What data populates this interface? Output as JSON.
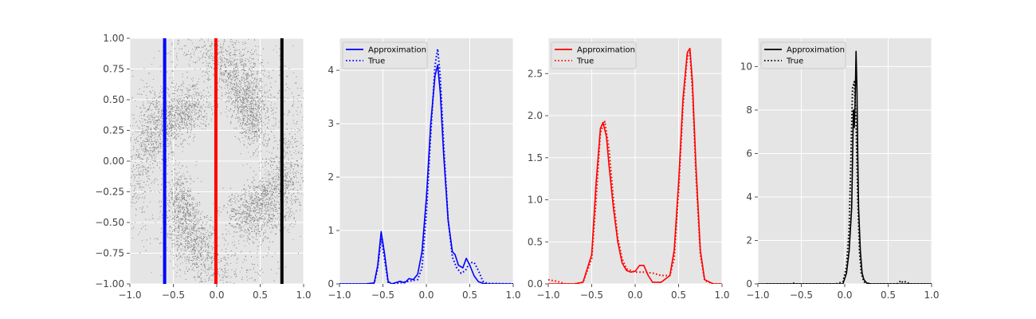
{
  "chart_data": [
    {
      "type": "scatter",
      "title": "",
      "xlabel": "",
      "ylabel": "",
      "xlim": [
        -1.0,
        1.0
      ],
      "ylim": [
        -1.0,
        1.0
      ],
      "grid": true,
      "xticks": [
        "−1.0",
        "−0.5",
        "0.0",
        "0.5",
        "1.0"
      ],
      "yticks": [
        "−1.00",
        "−0.75",
        "−0.50",
        "−0.25",
        "0.00",
        "0.25",
        "0.50",
        "0.75",
        "1.00"
      ],
      "xtick_values": [
        -1.0,
        -0.5,
        0.0,
        0.5,
        1.0
      ],
      "ytick_values": [
        -1.0,
        -0.75,
        -0.5,
        -0.25,
        0.0,
        0.25,
        0.5,
        0.75,
        1.0
      ],
      "point_color": "#808080",
      "spiral_arms": 4,
      "vertical_lines": [
        {
          "x": -0.6,
          "color": "#0000ff"
        },
        {
          "x": -0.01,
          "color": "#ff0000"
        },
        {
          "x": 0.75,
          "color": "#000000"
        }
      ]
    },
    {
      "type": "line",
      "title": "",
      "xlabel": "",
      "ylabel": "",
      "xlim": [
        -1.0,
        1.0
      ],
      "ylim": [
        0,
        4.6
      ],
      "grid": true,
      "legend": "top-left",
      "xticks": [
        "−1.0",
        "−0.5",
        "0.0",
        "0.5",
        "1.0"
      ],
      "yticks": [
        "0",
        "1",
        "2",
        "3",
        "4"
      ],
      "xtick_values": [
        -1.0,
        -0.5,
        0.0,
        0.5,
        1.0
      ],
      "ytick_values": [
        0,
        1,
        2,
        3,
        4
      ],
      "color": "#0000ff",
      "series": [
        {
          "name": "Approximation",
          "style": "solid",
          "x": [
            -1.0,
            -0.7,
            -0.6,
            -0.56,
            -0.52,
            -0.48,
            -0.44,
            -0.4,
            -0.3,
            -0.25,
            -0.2,
            -0.15,
            -0.1,
            -0.05,
            0.0,
            0.05,
            0.1,
            0.13,
            0.16,
            0.2,
            0.25,
            0.3,
            0.33,
            0.37,
            0.42,
            0.46,
            0.5,
            0.55,
            0.6,
            0.65,
            0.7,
            1.0
          ],
          "y": [
            0.0,
            0.0,
            0.02,
            0.35,
            0.98,
            0.55,
            0.05,
            0.0,
            0.05,
            0.02,
            0.1,
            0.08,
            0.18,
            0.6,
            1.6,
            3.0,
            3.9,
            4.1,
            3.6,
            2.4,
            1.2,
            0.6,
            0.55,
            0.35,
            0.3,
            0.48,
            0.35,
            0.15,
            0.04,
            0.01,
            0.0,
            0.0
          ]
        },
        {
          "name": "True",
          "style": "dotted",
          "x": [
            -1.0,
            -0.7,
            -0.6,
            -0.56,
            -0.52,
            -0.48,
            -0.44,
            -0.4,
            -0.3,
            -0.2,
            -0.1,
            -0.05,
            0.0,
            0.05,
            0.1,
            0.13,
            0.16,
            0.2,
            0.25,
            0.3,
            0.35,
            0.4,
            0.45,
            0.5,
            0.55,
            0.6,
            0.65,
            0.7,
            1.0
          ],
          "y": [
            0.0,
            0.0,
            0.01,
            0.3,
            0.85,
            0.45,
            0.03,
            0.0,
            0.02,
            0.05,
            0.08,
            0.3,
            1.3,
            2.8,
            4.1,
            4.4,
            3.9,
            2.6,
            1.2,
            0.5,
            0.3,
            0.2,
            0.25,
            0.4,
            0.4,
            0.25,
            0.05,
            0.01,
            0.0
          ]
        }
      ]
    },
    {
      "type": "line",
      "title": "",
      "xlabel": "",
      "ylabel": "",
      "xlim": [
        -1.0,
        1.0
      ],
      "ylim": [
        0,
        2.92
      ],
      "grid": true,
      "legend": "top-left",
      "xticks": [
        "−1.0",
        "−0.5",
        "0.0",
        "0.5",
        "1.0"
      ],
      "yticks": [
        "0.0",
        "0.5",
        "1.0",
        "1.5",
        "2.0",
        "2.5"
      ],
      "xtick_values": [
        -1.0,
        -0.5,
        0.0,
        0.5,
        1.0
      ],
      "ytick_values": [
        0.0,
        0.5,
        1.0,
        1.5,
        2.0,
        2.5
      ],
      "color": "#ff0000",
      "series": [
        {
          "name": "Approximation",
          "style": "solid",
          "x": [
            -1.0,
            -0.7,
            -0.6,
            -0.5,
            -0.45,
            -0.4,
            -0.37,
            -0.33,
            -0.3,
            -0.25,
            -0.2,
            -0.15,
            -0.1,
            -0.05,
            0.0,
            0.05,
            0.1,
            0.15,
            0.2,
            0.3,
            0.4,
            0.45,
            0.5,
            0.55,
            0.6,
            0.63,
            0.66,
            0.7,
            0.75,
            0.8,
            0.9,
            1.0
          ],
          "y": [
            0.0,
            0.0,
            0.02,
            0.35,
            1.2,
            1.85,
            1.92,
            1.75,
            1.4,
            0.9,
            0.5,
            0.25,
            0.16,
            0.14,
            0.15,
            0.22,
            0.22,
            0.1,
            0.02,
            0.02,
            0.1,
            0.4,
            1.2,
            2.2,
            2.75,
            2.8,
            2.4,
            1.4,
            0.4,
            0.05,
            0.0,
            0.0
          ]
        },
        {
          "name": "True",
          "style": "dotted",
          "x": [
            -1.0,
            -0.9,
            -0.8,
            -0.7,
            -0.6,
            -0.5,
            -0.45,
            -0.4,
            -0.35,
            -0.3,
            -0.25,
            -0.2,
            -0.15,
            -0.1,
            0.0,
            0.1,
            0.2,
            0.3,
            0.4,
            0.45,
            0.5,
            0.55,
            0.6,
            0.63,
            0.66,
            0.7,
            0.75,
            0.8,
            0.9,
            1.0
          ],
          "y": [
            0.05,
            0.03,
            0.0,
            0.0,
            0.02,
            0.3,
            1.0,
            1.8,
            1.93,
            1.6,
            1.0,
            0.55,
            0.3,
            0.18,
            0.14,
            0.14,
            0.13,
            0.1,
            0.1,
            0.3,
            1.1,
            2.1,
            2.7,
            2.75,
            2.3,
            1.3,
            0.35,
            0.04,
            0.0,
            0.0
          ]
        }
      ]
    },
    {
      "type": "line",
      "title": "",
      "xlabel": "",
      "ylabel": "",
      "xlim": [
        -1.0,
        1.0
      ],
      "ylim": [
        0,
        11.3
      ],
      "grid": true,
      "legend": "top-left",
      "xticks": [
        "−1.0",
        "−0.5",
        "0.0",
        "0.5",
        "1.0"
      ],
      "yticks": [
        "0",
        "2",
        "4",
        "6",
        "8",
        "10"
      ],
      "xtick_values": [
        -1.0,
        -0.5,
        0.0,
        0.5,
        1.0
      ],
      "ytick_values": [
        0,
        2,
        4,
        6,
        8,
        10
      ],
      "color": "#000000",
      "series": [
        {
          "name": "Approximation",
          "style": "solid",
          "x": [
            -1.0,
            -0.5,
            -0.1,
            -0.02,
            0.02,
            0.05,
            0.08,
            0.1,
            0.11,
            0.12,
            0.13,
            0.14,
            0.15,
            0.16,
            0.18,
            0.2,
            0.22,
            0.25,
            0.3,
            0.6,
            1.0
          ],
          "y": [
            0.0,
            0.0,
            0.0,
            0.0,
            0.5,
            1.5,
            3.5,
            8.0,
            7.2,
            8.5,
            10.7,
            9.0,
            6.0,
            3.5,
            1.5,
            0.5,
            0.2,
            0.05,
            0.0,
            0.0,
            0.0
          ]
        },
        {
          "name": "True",
          "style": "dotted",
          "x": [
            -0.9,
            -0.6,
            -0.58,
            -0.56,
            -0.3,
            -0.1,
            -0.02,
            0.02,
            0.05,
            0.07,
            0.09,
            0.11,
            0.13,
            0.15,
            0.17,
            0.19,
            0.22,
            0.25,
            0.6,
            0.65,
            0.67,
            0.7,
            0.75,
            1.0
          ],
          "y": [
            0.0,
            0.0,
            0.05,
            0.0,
            0.0,
            0.0,
            0.1,
            0.8,
            2.5,
            5.5,
            9.0,
            9.3,
            7.5,
            4.0,
            1.5,
            0.5,
            0.1,
            0.0,
            0.0,
            0.15,
            0.05,
            0.1,
            0.0,
            0.0
          ]
        }
      ]
    }
  ]
}
